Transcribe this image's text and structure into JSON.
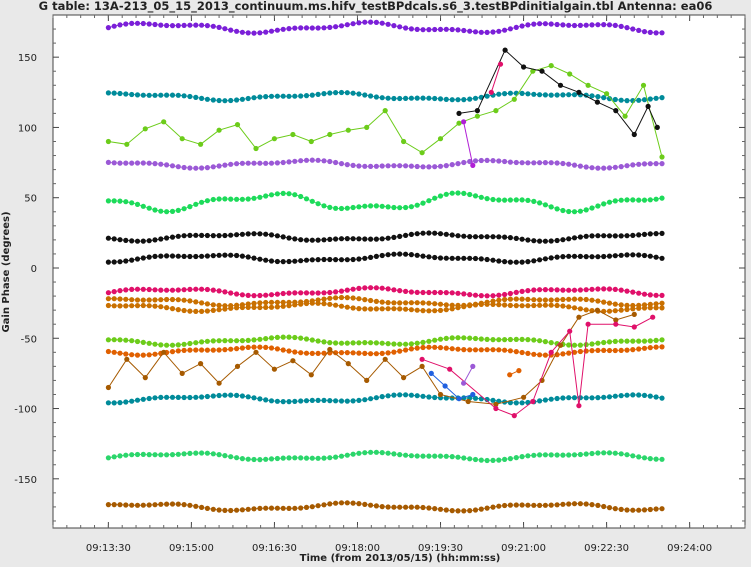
{
  "chart_data": {
    "type": "scatter",
    "title": "G table: 13A-213_05_15_2013_continuum.ms.hifv_testBPdcals.s6_3.testBPdinitialgain.tbl    Antenna: ea06",
    "xlabel": "Time (from 2013/05/15) (hh:mm:ss)",
    "ylabel": "Gain Phase (degrees)",
    "x_ticks": [
      "09:13:30",
      "09:15:00",
      "09:16:30",
      "09:18:00",
      "09:19:30",
      "09:21:00",
      "09:22:30",
      "09:24:00"
    ],
    "y_ticks": [
      150,
      100,
      50,
      0,
      -50,
      -100,
      -150
    ],
    "xlim": [
      "09:12:30",
      "09:25:00"
    ],
    "ylim": [
      -185,
      180
    ],
    "grid": false,
    "x_start": "09:13:30",
    "x_end": "09:23:30",
    "series": [
      {
        "color": "#7b1fd8",
        "offset": 171,
        "amplitude": 4,
        "kind": "steady"
      },
      {
        "color": "#008b9a",
        "offset": 122,
        "amplitude": 3,
        "kind": "steady"
      },
      {
        "color": "#9b59d6",
        "offset": 74,
        "amplitude": 3,
        "kind": "steady"
      },
      {
        "color": "#1ddb5a",
        "offset": 47,
        "amplitude": 7,
        "kind": "steady"
      },
      {
        "color": "#111111",
        "offset": 22,
        "amplitude": 3,
        "kind": "steady"
      },
      {
        "color": "#111111",
        "offset": 7,
        "amplitude": 3,
        "kind": "steady"
      },
      {
        "color": "#e0106a",
        "offset": -17,
        "amplitude": 3,
        "kind": "steady"
      },
      {
        "color": "#c97000",
        "offset": -24,
        "amplitude": 3,
        "kind": "steady"
      },
      {
        "color": "#c97000",
        "offset": -28,
        "amplitude": 3,
        "kind": "steady"
      },
      {
        "color": "#6ccc1a",
        "offset": -52,
        "amplitude": 3,
        "kind": "steady"
      },
      {
        "color": "#e06000",
        "offset": -59,
        "amplitude": 3,
        "kind": "steady"
      },
      {
        "color": "#008b9a",
        "offset": -93,
        "amplitude": 3,
        "kind": "steady"
      },
      {
        "color": "#2bd66b",
        "offset": -134,
        "amplitude": 3,
        "kind": "steady"
      },
      {
        "color": "#a65a00",
        "offset": -170,
        "amplitude": 3,
        "kind": "steady"
      },
      {
        "color": "#6ccc1a",
        "kind": "noisy",
        "points": [
          [
            "09:13:30",
            90
          ],
          [
            "09:13:50",
            88
          ],
          [
            "09:14:10",
            99
          ],
          [
            "09:14:30",
            104
          ],
          [
            "09:14:50",
            92
          ],
          [
            "09:15:10",
            88
          ],
          [
            "09:15:30",
            98
          ],
          [
            "09:15:50",
            102
          ],
          [
            "09:16:10",
            85
          ],
          [
            "09:16:30",
            92
          ],
          [
            "09:16:50",
            95
          ],
          [
            "09:17:10",
            90
          ],
          [
            "09:17:30",
            95
          ],
          [
            "09:17:50",
            98
          ],
          [
            "09:18:10",
            100
          ],
          [
            "09:18:30",
            112
          ],
          [
            "09:18:50",
            90
          ],
          [
            "09:19:10",
            82
          ],
          [
            "09:19:30",
            92
          ],
          [
            "09:19:50",
            103
          ],
          [
            "09:20:10",
            108
          ],
          [
            "09:20:30",
            112
          ],
          [
            "09:20:50",
            120
          ],
          [
            "09:21:10",
            140
          ],
          [
            "09:21:30",
            144
          ],
          [
            "09:21:50",
            138
          ],
          [
            "09:22:10",
            130
          ],
          [
            "09:22:30",
            124
          ],
          [
            "09:22:50",
            108
          ],
          [
            "09:23:10",
            130
          ],
          [
            "09:23:30",
            79
          ]
        ]
      },
      {
        "color": "#111111",
        "kind": "noisy",
        "points": [
          [
            "09:19:50",
            110
          ],
          [
            "09:20:10",
            112
          ],
          [
            "09:20:40",
            155
          ],
          [
            "09:21:00",
            143
          ],
          [
            "09:21:20",
            140
          ],
          [
            "09:21:40",
            130
          ],
          [
            "09:22:00",
            125
          ],
          [
            "09:22:20",
            118
          ],
          [
            "09:22:40",
            112
          ],
          [
            "09:23:00",
            95
          ],
          [
            "09:23:15",
            115
          ],
          [
            "09:23:25",
            100
          ]
        ]
      },
      {
        "color": "#b11fd6",
        "kind": "noisy",
        "points": [
          [
            "09:19:55",
            104
          ],
          [
            "09:20:05",
            73
          ]
        ]
      },
      {
        "color": "#e0106a",
        "kind": "noisy",
        "points": [
          [
            "09:20:25",
            125
          ],
          [
            "09:20:35",
            145
          ]
        ]
      },
      {
        "color": "#a65a00",
        "kind": "noisy",
        "points": [
          [
            "09:13:30",
            -85
          ],
          [
            "09:13:50",
            -65
          ],
          [
            "09:14:10",
            -78
          ],
          [
            "09:14:30",
            -60
          ],
          [
            "09:14:50",
            -75
          ],
          [
            "09:15:10",
            -68
          ],
          [
            "09:15:30",
            -82
          ],
          [
            "09:15:50",
            -70
          ],
          [
            "09:16:10",
            -60
          ],
          [
            "09:16:30",
            -72
          ],
          [
            "09:16:50",
            -66
          ],
          [
            "09:17:10",
            -76
          ],
          [
            "09:17:30",
            -58
          ],
          [
            "09:17:50",
            -68
          ],
          [
            "09:18:10",
            -80
          ],
          [
            "09:18:30",
            -65
          ],
          [
            "09:18:50",
            -78
          ],
          [
            "09:19:10",
            -70
          ],
          [
            "09:19:30",
            -90
          ],
          [
            "09:20:00",
            -95
          ],
          [
            "09:20:30",
            -97
          ],
          [
            "09:21:00",
            -92
          ],
          [
            "09:21:20",
            -80
          ],
          [
            "09:21:40",
            -55
          ],
          [
            "09:22:00",
            -35
          ],
          [
            "09:22:20",
            -30
          ],
          [
            "09:22:40",
            -37
          ],
          [
            "09:23:00",
            -33
          ]
        ]
      },
      {
        "color": "#2060e0",
        "kind": "noisy",
        "points": [
          [
            "09:19:20",
            -75
          ],
          [
            "09:19:35",
            -84
          ],
          [
            "09:19:50",
            -93
          ],
          [
            "09:20:05",
            -90
          ]
        ]
      },
      {
        "color": "#e0106a",
        "kind": "noisy",
        "points": [
          [
            "09:19:10",
            -65
          ],
          [
            "09:19:40",
            -72
          ],
          [
            "09:20:30",
            -100
          ],
          [
            "09:20:50",
            -105
          ],
          [
            "09:21:10",
            -95
          ],
          [
            "09:21:30",
            -60
          ],
          [
            "09:21:50",
            -45
          ],
          [
            "09:22:00",
            -98
          ],
          [
            "09:22:10",
            -40
          ],
          [
            "09:22:40",
            -40
          ],
          [
            "09:23:00",
            -42
          ],
          [
            "09:23:20",
            -35
          ]
        ]
      },
      {
        "color": "#9b59d6",
        "kind": "noisy",
        "points": [
          [
            "09:19:55",
            -82
          ],
          [
            "09:20:05",
            -70
          ]
        ]
      },
      {
        "color": "#e06000",
        "kind": "noisy",
        "points": [
          [
            "09:20:45",
            -76
          ],
          [
            "09:20:55",
            -73
          ]
        ]
      }
    ]
  }
}
